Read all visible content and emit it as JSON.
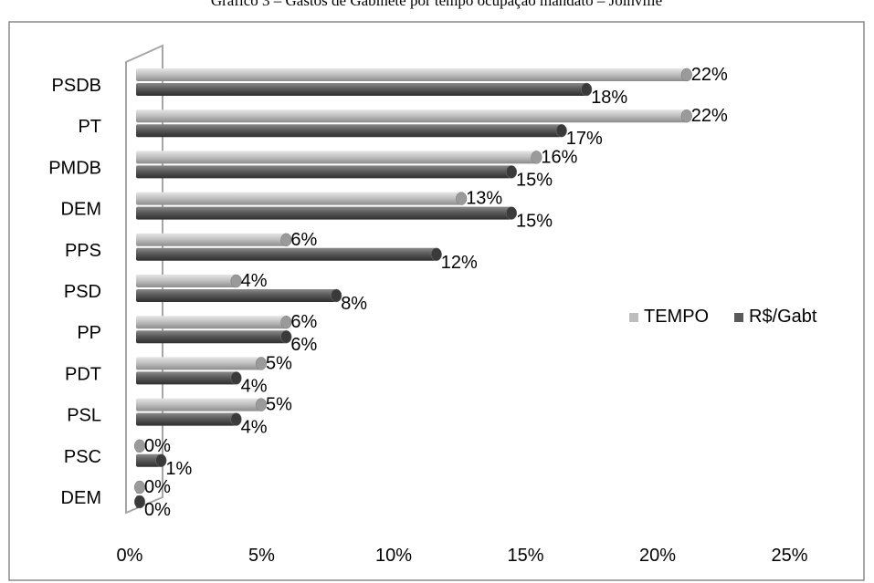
{
  "chart_data": {
    "type": "bar",
    "orientation": "horizontal",
    "title": "Gráfico 3 – Gastos de Gabinete por tempo ocupação mandato – Joinville",
    "categories": [
      "PSDB",
      "PT",
      "PMDB",
      "DEM",
      "PPS",
      "PSD",
      "PP",
      "PDT",
      "PSL",
      "PSC",
      "DEM"
    ],
    "series": [
      {
        "name": "TEMPO",
        "color": "#bdbdbd",
        "values": [
          22,
          22,
          16,
          13,
          6,
          4,
          6,
          5,
          5,
          0,
          0
        ],
        "labels": [
          "22%",
          "22%",
          "16%",
          "13%",
          "6%",
          "4%",
          "6%",
          "5%",
          "5%",
          "0%",
          "0%"
        ]
      },
      {
        "name": "R$/Gabt",
        "color": "#5a5a5a",
        "values": [
          18,
          17,
          15,
          15,
          12,
          8,
          6,
          4,
          4,
          1,
          0
        ],
        "labels": [
          "18%",
          "17%",
          "15%",
          "15%",
          "12%",
          "8%",
          "6%",
          "4%",
          "4%",
          "1%",
          "0%"
        ]
      }
    ],
    "xlim": [
      0,
      25
    ],
    "xticks": [
      "0%",
      "5%",
      "10%",
      "15%",
      "20%",
      "25%"
    ],
    "legend_position": "right",
    "grid": false
  }
}
